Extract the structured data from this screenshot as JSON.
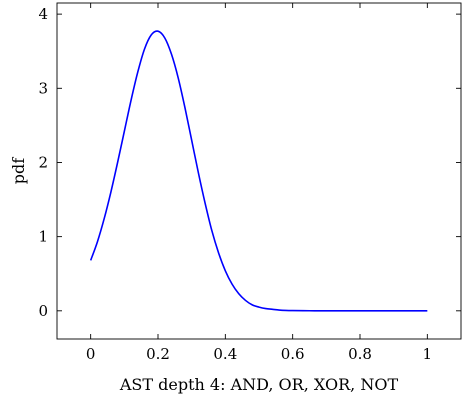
{
  "chart_data": {
    "type": "line",
    "title": "",
    "xlabel": "AST depth 4: AND, OR, XOR, NOT",
    "ylabel": "pdf",
    "xlim": [
      -0.1,
      1.1
    ],
    "ylim": [
      -0.38,
      4.15
    ],
    "grid": false,
    "legend": "none",
    "x_ticks": [
      0,
      0.2,
      0.4,
      0.6,
      0.8,
      1
    ],
    "x_tick_labels": [
      "0",
      "0.2",
      "0.4",
      "0.6",
      "0.8",
      "1"
    ],
    "y_ticks": [
      0,
      1,
      2,
      3,
      4
    ],
    "y_tick_labels": [
      "0",
      "1",
      "2",
      "3",
      "4"
    ],
    "series": [
      {
        "color": "#0000ff",
        "x": [
          0,
          0.02,
          0.04,
          0.06,
          0.08,
          0.1,
          0.12,
          0.14,
          0.16,
          0.18,
          0.2,
          0.22,
          0.24,
          0.26,
          0.28,
          0.3,
          0.32,
          0.34,
          0.36,
          0.38,
          0.4,
          0.42,
          0.44,
          0.46,
          0.48,
          0.5,
          0.52,
          0.54,
          0.56,
          0.58,
          0.6,
          0.65,
          0.7,
          0.8,
          0.9,
          1.0
        ],
        "y": [
          0.68,
          0.93,
          1.24,
          1.6,
          2.0,
          2.42,
          2.84,
          3.22,
          3.53,
          3.72,
          3.77,
          3.68,
          3.46,
          3.14,
          2.74,
          2.3,
          1.86,
          1.45,
          1.08,
          0.78,
          0.54,
          0.36,
          0.23,
          0.14,
          0.08,
          0.05,
          0.03,
          0.02,
          0.01,
          0.005,
          0.003,
          0.001,
          0.0,
          0.0,
          0.0,
          0.0
        ]
      }
    ]
  }
}
